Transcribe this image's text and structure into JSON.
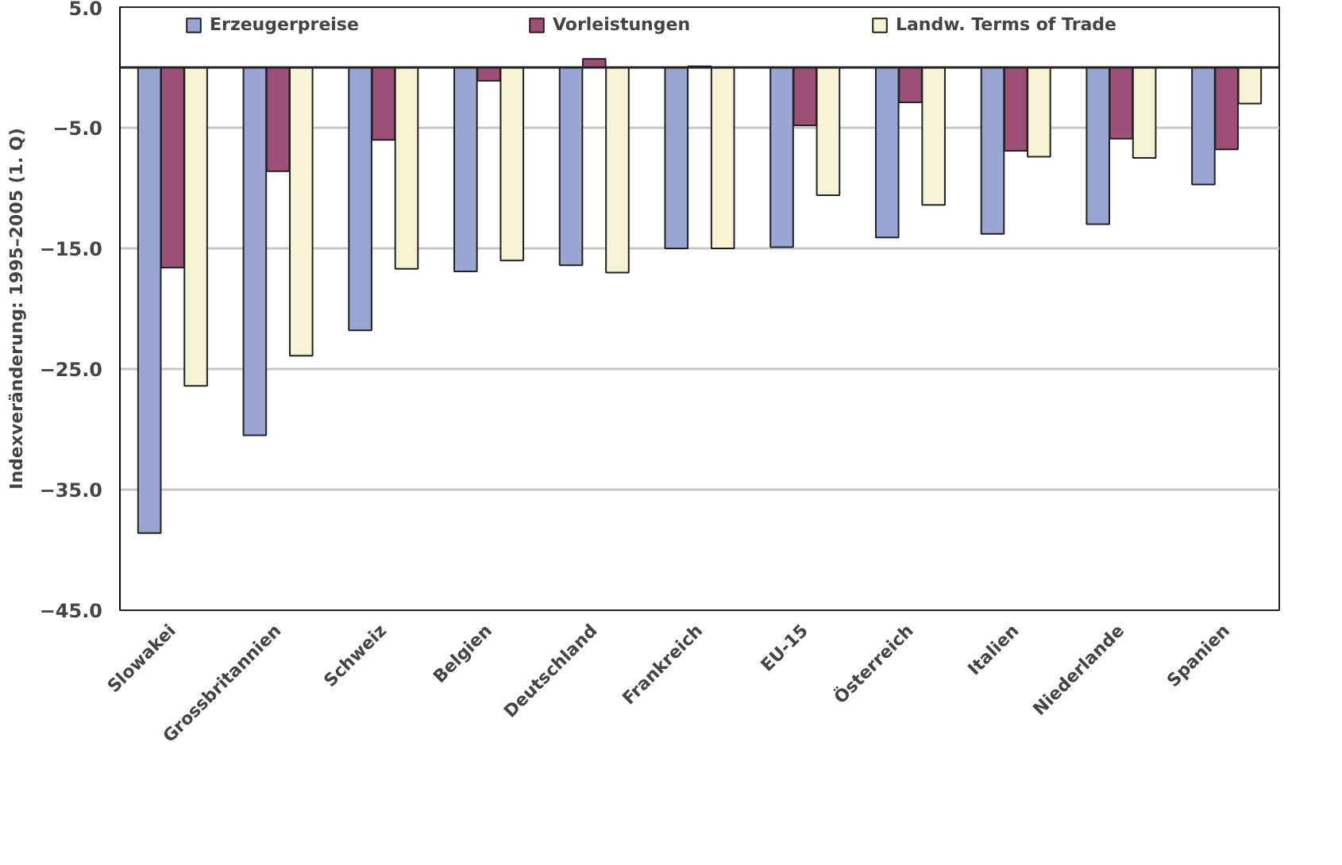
{
  "chart_data": {
    "type": "bar",
    "ylabel": "Indexveränderung: 1995–2005 (1. Q)",
    "categories": [
      "Slowakei",
      "Grossbritannien",
      "Schweiz",
      "Belgien",
      "Deutschland",
      "Frankreich",
      "EU-15",
      "Österreich",
      "Italien",
      "Niederlande",
      "Spanien"
    ],
    "series": [
      {
        "name": "Erzeugerpreise",
        "color": "#99a5d3",
        "values": [
          -38.6,
          -30.5,
          -21.8,
          -16.9,
          -16.4,
          -15.0,
          -14.9,
          -14.1,
          -13.8,
          -13.0,
          -9.7
        ]
      },
      {
        "name": "Vorleistungen",
        "color": "#9e4f77",
        "values": [
          -16.6,
          -8.6,
          -6.0,
          -1.1,
          0.7,
          0.1,
          -4.8,
          -2.9,
          -6.9,
          -5.9,
          -6.8
        ]
      },
      {
        "name": "Landw. Terms of Trade",
        "color": "#f5f3d3",
        "values": [
          -26.4,
          -23.9,
          -16.7,
          -16.0,
          -17.0,
          -15.0,
          -10.6,
          -11.4,
          -7.4,
          -7.5,
          -3.0
        ]
      }
    ],
    "ylim": [
      -45,
      5
    ],
    "yticks": [
      {
        "value": 5,
        "label": "5.0"
      },
      {
        "value": -5,
        "label": "−5.0"
      },
      {
        "value": -15,
        "label": "−15.0"
      },
      {
        "value": -25,
        "label": "−25.0"
      },
      {
        "value": -35,
        "label": "−35.0"
      },
      {
        "value": -45,
        "label": "−45.0"
      }
    ],
    "grid": "y",
    "legend": "top"
  }
}
